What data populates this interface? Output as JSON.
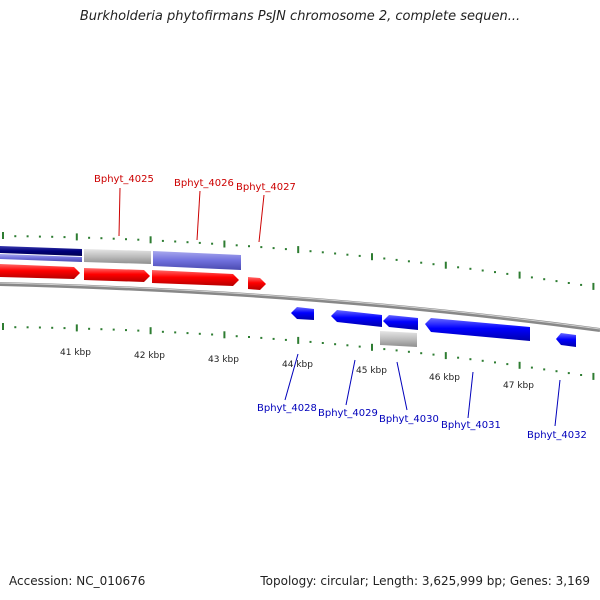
{
  "title": "Burkholderia phytofirmans PsJN chromosome 2, complete sequen...",
  "accession": "Accession: NC_010676",
  "summary": "Topology: circular; Length: 3,625,999 bp; Genes: 3,169",
  "scale_labels": [
    "41 kbp",
    "42 kbp",
    "43 kbp",
    "44 kbp",
    "45 kbp",
    "46 kbp",
    "47 kbp"
  ],
  "forward_genes": [
    "Bphyt_4025",
    "Bphyt_4026",
    "Bphyt_4027"
  ],
  "reverse_genes": [
    "Bphyt_4028",
    "Bphyt_4029",
    "Bphyt_4030",
    "Bphyt_4031",
    "Bphyt_4032"
  ],
  "colors": {
    "forward_cds": "#ff0000",
    "reverse_cds": "#0000ff",
    "gene_bar": "#7070dd",
    "gene_bar_dark": "#00007a",
    "gray_feature": "#bbbbbb",
    "ticks": "#2e7d32",
    "backbone": "#888888"
  }
}
